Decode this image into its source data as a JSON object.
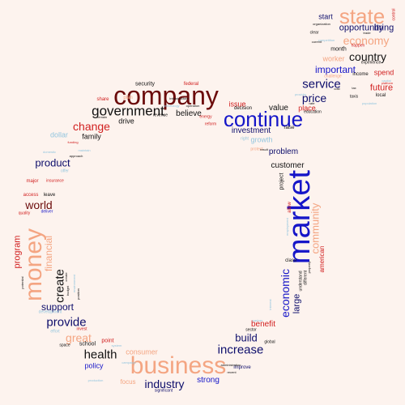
{
  "palette": {
    "dark_red": "#6b0b0b",
    "navy": "#0d0d6b",
    "blue": "#1515c8",
    "red": "#d12020",
    "peach": "#f4a582",
    "light_blue": "#92c5de",
    "black": "#111111"
  },
  "words": [
    {
      "text": "company",
      "color": "dark_red"
    },
    {
      "text": "business",
      "color": "peach"
    },
    {
      "text": "market",
      "color": "blue"
    },
    {
      "text": "continue",
      "color": "blue"
    },
    {
      "text": "money",
      "color": "peach"
    },
    {
      "text": "state",
      "color": "peach"
    },
    {
      "text": "government",
      "color": "black"
    },
    {
      "text": "increase",
      "color": "navy"
    },
    {
      "text": "health",
      "color": "black"
    },
    {
      "text": "economic",
      "color": "blue"
    },
    {
      "text": "change",
      "color": "red"
    },
    {
      "text": "price",
      "color": "navy"
    },
    {
      "text": "service",
      "color": "navy"
    },
    {
      "text": "economy",
      "color": "peach"
    },
    {
      "text": "country",
      "color": "black"
    },
    {
      "text": "world",
      "color": "dark_red"
    },
    {
      "text": "create",
      "color": "black"
    },
    {
      "text": "provide",
      "color": "navy"
    },
    {
      "text": "great",
      "color": "peach"
    },
    {
      "text": "build",
      "color": "navy"
    },
    {
      "text": "industry",
      "color": "navy"
    },
    {
      "text": "product",
      "color": "navy"
    },
    {
      "text": "support",
      "color": "navy"
    },
    {
      "text": "community",
      "color": "peach"
    },
    {
      "text": "financial",
      "color": "peach"
    },
    {
      "text": "program",
      "color": "red"
    },
    {
      "text": "large",
      "color": "navy"
    },
    {
      "text": "future",
      "color": "red"
    },
    {
      "text": "important",
      "color": "blue"
    },
    {
      "text": "opportunity",
      "color": "navy"
    },
    {
      "text": "bring",
      "color": "navy"
    },
    {
      "text": "investment",
      "color": "navy"
    },
    {
      "text": "problem",
      "color": "navy"
    },
    {
      "text": "customer",
      "color": "black"
    },
    {
      "text": "strong",
      "color": "blue"
    },
    {
      "text": "benefit",
      "color": "red"
    },
    {
      "text": "consumer",
      "color": "peach"
    },
    {
      "text": "issue",
      "color": "red"
    },
    {
      "text": "believe",
      "color": "black"
    },
    {
      "text": "value",
      "color": "black"
    },
    {
      "text": "place",
      "color": "red"
    },
    {
      "text": "family",
      "color": "black"
    },
    {
      "text": "start",
      "color": "navy"
    },
    {
      "text": "worker",
      "color": "peach"
    },
    {
      "text": "spend",
      "color": "red"
    },
    {
      "text": "dollar",
      "color": "light_blue"
    },
    {
      "text": "drive",
      "color": "black"
    },
    {
      "text": "policy",
      "color": "blue"
    },
    {
      "text": "school",
      "color": "black"
    },
    {
      "text": "point",
      "color": "red"
    },
    {
      "text": "focus",
      "color": "peach"
    },
    {
      "text": "american",
      "color": "red"
    },
    {
      "text": "project",
      "color": "black"
    },
    {
      "text": "growth",
      "color": "light_blue"
    },
    {
      "text": "month",
      "color": "black"
    },
    {
      "text": "security",
      "color": "black"
    },
    {
      "text": "federal",
      "color": "red"
    },
    {
      "text": "share",
      "color": "red"
    },
    {
      "text": "plan",
      "color": "peach"
    },
    {
      "text": "improve",
      "color": "navy"
    },
    {
      "text": "global",
      "color": "black"
    },
    {
      "text": "sector",
      "color": "black"
    },
    {
      "text": "access",
      "color": "red"
    },
    {
      "text": "leave",
      "color": "black"
    },
    {
      "text": "major",
      "color": "red"
    },
    {
      "text": "insurance",
      "color": "red"
    },
    {
      "text": "offer",
      "color": "light_blue"
    },
    {
      "text": "quality",
      "color": "red"
    },
    {
      "text": "deliver",
      "color": "blue"
    },
    {
      "text": "understand",
      "color": "black"
    },
    {
      "text": "class",
      "color": "black"
    },
    {
      "text": "different",
      "color": "black"
    },
    {
      "text": "education",
      "color": "black"
    },
    {
      "text": "raise",
      "color": "black"
    },
    {
      "text": "decision",
      "color": "black"
    },
    {
      "text": "protect",
      "color": "peach"
    },
    {
      "text": "right",
      "color": "light_blue"
    },
    {
      "text": "income",
      "color": "black"
    },
    {
      "text": "taxis",
      "color": "black"
    },
    {
      "text": "local",
      "color": "black"
    },
    {
      "text": "experience",
      "color": "black"
    },
    {
      "text": "happen",
      "color": "red"
    },
    {
      "text": "clear",
      "color": "black"
    },
    {
      "text": "challenge",
      "color": "peach"
    },
    {
      "text": "revenue",
      "color": "black"
    },
    {
      "text": "energy",
      "color": "red"
    },
    {
      "text": "reform",
      "color": "red"
    },
    {
      "text": "significant",
      "color": "navy"
    },
    {
      "text": "invest",
      "color": "red"
    },
    {
      "text": "effort",
      "color": "light_blue"
    },
    {
      "text": "space",
      "color": "black"
    },
    {
      "text": "development",
      "color": "light_blue"
    },
    {
      "text": "position",
      "color": "black"
    },
    {
      "text": "potential",
      "color": "black"
    },
    {
      "text": "budget",
      "color": "black"
    },
    {
      "text": "remain",
      "color": "black"
    },
    {
      "text": "allow",
      "color": "red"
    },
    {
      "text": "approach",
      "color": "black"
    },
    {
      "text": "funding",
      "color": "red"
    },
    {
      "text": "maintain",
      "color": "light_blue"
    },
    {
      "text": "employment",
      "color": "light_blue"
    },
    {
      "text": "property",
      "color": "black"
    },
    {
      "text": "interest",
      "color": "light_blue"
    },
    {
      "text": "population",
      "color": "light_blue"
    },
    {
      "text": "capital",
      "color": "light_blue"
    },
    {
      "text": "competition",
      "color": "light_blue"
    },
    {
      "text": "environment",
      "color": "light_blue"
    },
    {
      "text": "control",
      "color": "red"
    },
    {
      "text": "platform",
      "color": "red"
    },
    {
      "text": "current",
      "color": "black"
    },
    {
      "text": "organization",
      "color": "black"
    },
    {
      "text": "create",
      "color": "black"
    },
    {
      "text": "result",
      "color": "black"
    },
    {
      "text": "recent",
      "color": "black"
    },
    {
      "text": "system",
      "color": "light_blue"
    },
    {
      "text": "production",
      "color": "light_blue"
    },
    {
      "text": "campaign",
      "color": "light_blue"
    },
    {
      "text": "technology",
      "color": "light_blue"
    },
    {
      "text": "operation",
      "color": "black"
    },
    {
      "text": "provider",
      "color": "light_blue"
    },
    {
      "text": "partner",
      "color": "light_blue"
    },
    {
      "text": "infrastructure",
      "color": "black"
    },
    {
      "text": "administration",
      "color": "black"
    },
    {
      "text": "domestic",
      "color": "light_blue"
    },
    {
      "text": "tax",
      "color": "black"
    },
    {
      "text": "trade",
      "color": "black"
    },
    {
      "text": "cost",
      "color": "black"
    },
    {
      "text": "rate",
      "color": "black"
    }
  ]
}
